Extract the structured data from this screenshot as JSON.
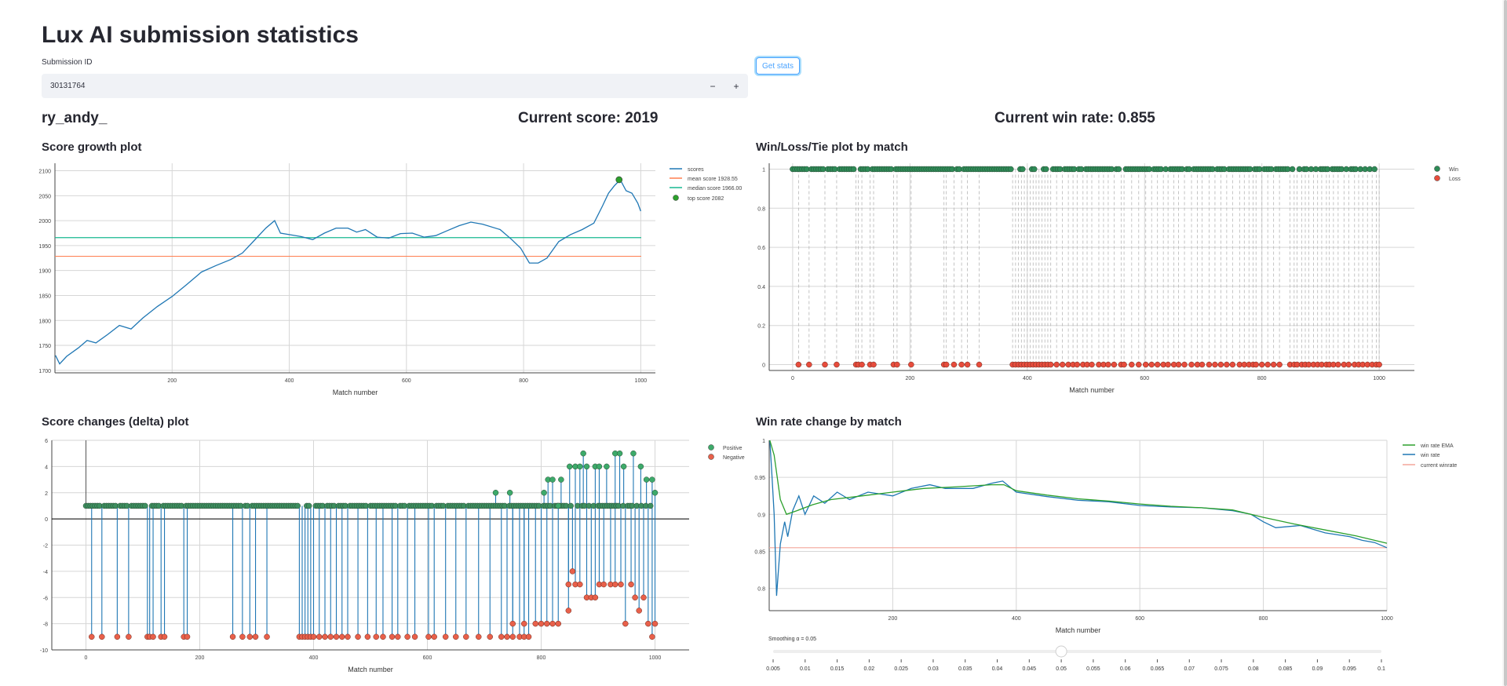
{
  "page": {
    "title": "Lux AI submission statistics",
    "submission_label": "Submission ID",
    "submission_value": "30131764",
    "minus": "−",
    "plus": "+",
    "get_stats": "Get stats",
    "player": "ry_andy_",
    "current_score": "Current score: 2019",
    "current_winrate": "Current win rate: 0.855"
  },
  "chart_data": [
    {
      "id": "score-growth",
      "type": "line",
      "title": "Score growth plot",
      "xlabel": "Match number",
      "ylabel": "",
      "xlim": [
        0,
        1025
      ],
      "ylim": [
        1695,
        2115
      ],
      "xticks": [
        200,
        400,
        600,
        800,
        1000
      ],
      "yticks": [
        1700,
        1750,
        1800,
        1850,
        1900,
        1950,
        2000,
        2050,
        2100
      ],
      "series": [
        {
          "name": "scores",
          "color": "#1f77b4",
          "points": [
            [
              1,
              1730
            ],
            [
              8,
              1713
            ],
            [
              20,
              1728
            ],
            [
              40,
              1745
            ],
            [
              55,
              1760
            ],
            [
              70,
              1755
            ],
            [
              90,
              1772
            ],
            [
              110,
              1790
            ],
            [
              130,
              1783
            ],
            [
              150,
              1805
            ],
            [
              175,
              1828
            ],
            [
              200,
              1848
            ],
            [
              225,
              1872
            ],
            [
              250,
              1897
            ],
            [
              275,
              1910
            ],
            [
              300,
              1922
            ],
            [
              320,
              1935
            ],
            [
              340,
              1960
            ],
            [
              360,
              1985
            ],
            [
              375,
              2000
            ],
            [
              385,
              1975
            ],
            [
              400,
              1972
            ],
            [
              420,
              1968
            ],
            [
              440,
              1962
            ],
            [
              460,
              1975
            ],
            [
              480,
              1985
            ],
            [
              500,
              1985
            ],
            [
              515,
              1977
            ],
            [
              530,
              1982
            ],
            [
              550,
              1967
            ],
            [
              570,
              1965
            ],
            [
              590,
              1974
            ],
            [
              610,
              1975
            ],
            [
              630,
              1967
            ],
            [
              650,
              1970
            ],
            [
              670,
              1980
            ],
            [
              690,
              1990
            ],
            [
              710,
              1997
            ],
            [
              730,
              1993
            ],
            [
              760,
              1982
            ],
            [
              780,
              1962
            ],
            [
              795,
              1945
            ],
            [
              810,
              1915
            ],
            [
              825,
              1915
            ],
            [
              840,
              1925
            ],
            [
              860,
              1958
            ],
            [
              880,
              1972
            ],
            [
              900,
              1982
            ],
            [
              920,
              1995
            ],
            [
              935,
              2030
            ],
            [
              945,
              2055
            ],
            [
              955,
              2070
            ],
            [
              965,
              2082
            ],
            [
              975,
              2060
            ],
            [
              985,
              2055
            ],
            [
              995,
              2035
            ],
            [
              1000,
              2019
            ]
          ]
        },
        {
          "name": "mean score 1928.55",
          "color": "#ff7f50",
          "value": 1928.55
        },
        {
          "name": "median score 1966.00",
          "color": "#17b890",
          "value": 1966.0
        },
        {
          "name": "top score 2082",
          "color": "#2ca02c",
          "point": [
            963,
            2082
          ]
        }
      ],
      "legend": [
        "scores",
        "mean score 1928.55",
        "median score 1966.00",
        "top score 2082"
      ],
      "legend_position": "top-right"
    },
    {
      "id": "win-loss",
      "type": "scatter",
      "title": "Win/Loss/Tie plot by match",
      "xlabel": "Match number",
      "xlim": [
        -40,
        1060
      ],
      "ylim": [
        -0.03,
        1.03
      ],
      "xticks": [
        0,
        200,
        400,
        600,
        800,
        1000
      ],
      "yticks": [
        0,
        0.2,
        0.4,
        0.6,
        0.8,
        1
      ],
      "win_range": [
        0,
        1000
      ],
      "losses": [
        10,
        28,
        55,
        75,
        108,
        112,
        118,
        132,
        138,
        172,
        178,
        202,
        258,
        262,
        275,
        288,
        298,
        318,
        375,
        380,
        385,
        390,
        395,
        400,
        405,
        410,
        415,
        420,
        425,
        430,
        435,
        440,
        450,
        460,
        470,
        478,
        485,
        495,
        502,
        510,
        522,
        530,
        538,
        548,
        560,
        565,
        578,
        590,
        602,
        612,
        622,
        632,
        640,
        650,
        658,
        668,
        680,
        690,
        698,
        710,
        720,
        730,
        740,
        750,
        762,
        770,
        778,
        785,
        790,
        800,
        810,
        820,
        830,
        848,
        855,
        860,
        868,
        874,
        880,
        888,
        895,
        902,
        910,
        915,
        922,
        930,
        940,
        948,
        958,
        965,
        972,
        980,
        988,
        995,
        1000
      ],
      "win_color": "#2e8b57",
      "loss_color": "#e74c3c",
      "legend": [
        "Win",
        "Loss"
      ],
      "legend_position": "top-right"
    },
    {
      "id": "score-delta",
      "type": "scatter",
      "title": "Score changes (delta) plot",
      "xlabel": "Match number",
      "xlim": [
        -60,
        1060
      ],
      "ylim": [
        -10,
        6
      ],
      "xticks": [
        0,
        200,
        400,
        600,
        800,
        1000
      ],
      "yticks": [
        -10,
        -8,
        -6,
        -4,
        -2,
        0,
        2,
        4,
        6
      ],
      "negatives": [
        [
          10,
          -9
        ],
        [
          28,
          -9
        ],
        [
          55,
          -9
        ],
        [
          75,
          -9
        ],
        [
          108,
          -9
        ],
        [
          112,
          -9
        ],
        [
          118,
          -9
        ],
        [
          132,
          -9
        ],
        [
          138,
          -9
        ],
        [
          172,
          -9
        ],
        [
          178,
          -9
        ],
        [
          258,
          -9
        ],
        [
          275,
          -9
        ],
        [
          288,
          -9
        ],
        [
          298,
          -9
        ],
        [
          318,
          -9
        ],
        [
          375,
          -9
        ],
        [
          380,
          -9
        ],
        [
          385,
          -9
        ],
        [
          390,
          -9
        ],
        [
          395,
          -9
        ],
        [
          400,
          -9
        ],
        [
          410,
          -9
        ],
        [
          420,
          -9
        ],
        [
          430,
          -9
        ],
        [
          440,
          -9
        ],
        [
          450,
          -9
        ],
        [
          460,
          -9
        ],
        [
          478,
          -9
        ],
        [
          495,
          -9
        ],
        [
          510,
          -9
        ],
        [
          522,
          -9
        ],
        [
          538,
          -9
        ],
        [
          548,
          -9
        ],
        [
          565,
          -9
        ],
        [
          578,
          -9
        ],
        [
          602,
          -9
        ],
        [
          612,
          -9
        ],
        [
          632,
          -9
        ],
        [
          650,
          -9
        ],
        [
          668,
          -9
        ],
        [
          690,
          -9
        ],
        [
          710,
          -9
        ],
        [
          730,
          -9
        ],
        [
          740,
          -9
        ],
        [
          750,
          -9
        ],
        [
          762,
          -9
        ],
        [
          770,
          -9
        ],
        [
          778,
          -9
        ],
        [
          750,
          -8
        ],
        [
          770,
          -8
        ],
        [
          790,
          -8
        ],
        [
          800,
          -8
        ],
        [
          810,
          -8
        ],
        [
          820,
          -8
        ],
        [
          830,
          -8
        ],
        [
          848,
          -5
        ],
        [
          855,
          -4
        ],
        [
          860,
          -5
        ],
        [
          868,
          -5
        ],
        [
          880,
          -6
        ],
        [
          888,
          -6
        ],
        [
          895,
          -6
        ],
        [
          902,
          -5
        ],
        [
          910,
          -5
        ],
        [
          922,
          -5
        ],
        [
          930,
          -5
        ],
        [
          940,
          -5
        ],
        [
          948,
          -8
        ],
        [
          958,
          -5
        ],
        [
          965,
          -6
        ],
        [
          972,
          -7
        ],
        [
          980,
          -6
        ],
        [
          988,
          -8
        ],
        [
          995,
          -9
        ],
        [
          1000,
          -8
        ],
        [
          848,
          -7
        ]
      ],
      "positives": [
        [
          720,
          2
        ],
        [
          745,
          2
        ],
        [
          805,
          2
        ],
        [
          812,
          3
        ],
        [
          820,
          3
        ],
        [
          835,
          3
        ],
        [
          850,
          4
        ],
        [
          860,
          4
        ],
        [
          868,
          4
        ],
        [
          874,
          5
        ],
        [
          880,
          4
        ],
        [
          895,
          4
        ],
        [
          902,
          4
        ],
        [
          915,
          4
        ],
        [
          930,
          5
        ],
        [
          938,
          5
        ],
        [
          945,
          4
        ],
        [
          962,
          5
        ],
        [
          975,
          4
        ],
        [
          985,
          3
        ],
        [
          995,
          3
        ],
        [
          1000,
          2
        ],
        [
          830,
          1
        ]
      ],
      "baseline": 1,
      "legend": [
        "Positive",
        "Negative"
      ],
      "legend_position": "top-right"
    },
    {
      "id": "winrate",
      "type": "line",
      "title": "Win rate change by match",
      "xlabel": "Match number",
      "xlim": [
        0,
        1000
      ],
      "ylim": [
        0.77,
        1.0
      ],
      "xticks": [
        200,
        400,
        600,
        800,
        1000
      ],
      "yticks": [
        0.8,
        0.85,
        0.9,
        0.95,
        1
      ],
      "series": [
        {
          "name": "win rate EMA",
          "color": "#2ca02c",
          "points": [
            [
              1,
              1.0
            ],
            [
              8,
              0.98
            ],
            [
              18,
              0.92
            ],
            [
              28,
              0.9
            ],
            [
              45,
              0.905
            ],
            [
              70,
              0.913
            ],
            [
              100,
              0.92
            ],
            [
              150,
              0.925
            ],
            [
              200,
              0.93
            ],
            [
              250,
              0.935
            ],
            [
              300,
              0.937
            ],
            [
              360,
              0.94
            ],
            [
              380,
              0.94
            ],
            [
              400,
              0.932
            ],
            [
              450,
              0.926
            ],
            [
              500,
              0.921
            ],
            [
              550,
              0.918
            ],
            [
              600,
              0.914
            ],
            [
              650,
              0.911
            ],
            [
              700,
              0.909
            ],
            [
              750,
              0.906
            ],
            [
              800,
              0.896
            ],
            [
              850,
              0.887
            ],
            [
              900,
              0.879
            ],
            [
              950,
              0.871
            ],
            [
              1000,
              0.861
            ]
          ]
        },
        {
          "name": "win rate",
          "color": "#1f77b4",
          "points": [
            [
              1,
              1.0
            ],
            [
              4,
              0.96
            ],
            [
              8,
              0.9
            ],
            [
              12,
              0.79
            ],
            [
              18,
              0.86
            ],
            [
              25,
              0.89
            ],
            [
              30,
              0.87
            ],
            [
              38,
              0.905
            ],
            [
              48,
              0.925
            ],
            [
              58,
              0.9
            ],
            [
              72,
              0.925
            ],
            [
              90,
              0.915
            ],
            [
              110,
              0.93
            ],
            [
              130,
              0.92
            ],
            [
              160,
              0.93
            ],
            [
              200,
              0.925
            ],
            [
              230,
              0.935
            ],
            [
              260,
              0.94
            ],
            [
              285,
              0.935
            ],
            [
              300,
              0.935
            ],
            [
              330,
              0.935
            ],
            [
              360,
              0.942
            ],
            [
              378,
              0.945
            ],
            [
              400,
              0.93
            ],
            [
              450,
              0.924
            ],
            [
              500,
              0.919
            ],
            [
              550,
              0.917
            ],
            [
              600,
              0.912
            ],
            [
              650,
              0.91
            ],
            [
              700,
              0.909
            ],
            [
              750,
              0.905
            ],
            [
              780,
              0.9
            ],
            [
              800,
              0.89
            ],
            [
              820,
              0.882
            ],
            [
              860,
              0.885
            ],
            [
              900,
              0.875
            ],
            [
              940,
              0.87
            ],
            [
              960,
              0.865
            ],
            [
              980,
              0.862
            ],
            [
              1000,
              0.855
            ]
          ]
        },
        {
          "name": "current winrate",
          "color": "#f4a59a",
          "value": 0.855
        }
      ],
      "legend": [
        "win rate EMA",
        "win rate",
        "current winrate"
      ],
      "legend_position": "top-right",
      "slider": {
        "label": "Smoothing α = 0.05",
        "min": 0.005,
        "max": 0.1,
        "value": 0.05,
        "ticks": [
          "0.005",
          "0.01",
          "0.015",
          "0.02",
          "0.025",
          "0.03",
          "0.035",
          "0.04",
          "0.045",
          "0.05",
          "0.055",
          "0.06",
          "0.065",
          "0.07",
          "0.075",
          "0.08",
          "0.085",
          "0.09",
          "0.095",
          "0.1"
        ]
      }
    }
  ]
}
